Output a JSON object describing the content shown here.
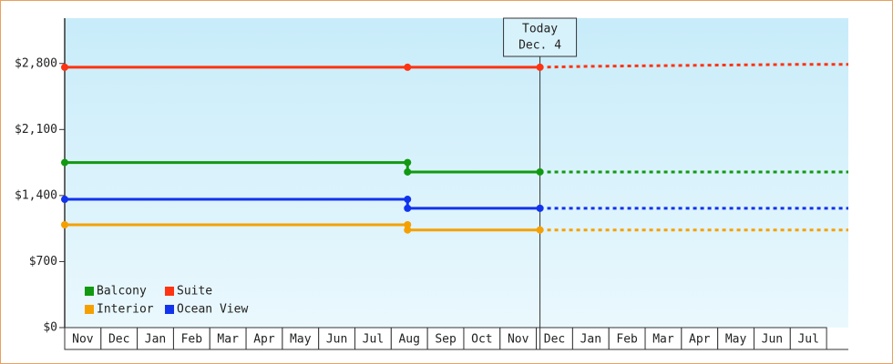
{
  "chart_data": {
    "type": "line",
    "step": true,
    "categories": [
      "Nov",
      "Dec",
      "Jan",
      "Feb",
      "Mar",
      "Apr",
      "May",
      "Jun",
      "Jul",
      "Aug",
      "Sep",
      "Oct",
      "Nov",
      "Dec",
      "Jan",
      "Feb",
      "Mar",
      "Apr",
      "May",
      "Jun",
      "Jul"
    ],
    "xlim": [
      0,
      21.6
    ],
    "ylim": [
      0,
      3280
    ],
    "yticks": [
      {
        "value": 0,
        "label": "$0"
      },
      {
        "value": 700,
        "label": "$700"
      },
      {
        "value": 1400,
        "label": "$1,400"
      },
      {
        "value": 2100,
        "label": "$2,100"
      },
      {
        "value": 2800,
        "label": "$2,800"
      }
    ],
    "legend": "bottom-left",
    "today": {
      "x": 13.1,
      "label": [
        "Today",
        "Dec. 4"
      ]
    },
    "series": [
      {
        "name": "Balcony",
        "color": "#119911",
        "x": [
          0,
          9.45,
          9.45,
          13.1
        ],
        "values": [
          1750,
          1750,
          1650,
          1650
        ],
        "forecast_x": [
          13.1,
          21.6
        ],
        "forecast_values": [
          1650,
          1650
        ]
      },
      {
        "name": "Suite",
        "color": "#ff3311",
        "x": [
          0,
          9.45,
          13.1
        ],
        "values": [
          2760,
          2760,
          2760
        ],
        "forecast_x": [
          13.1,
          14.5,
          20.1,
          21.6
        ],
        "forecast_values": [
          2760,
          2770,
          2790,
          2790
        ]
      },
      {
        "name": "Interior",
        "color": "#f5a000",
        "x": [
          0,
          9.45,
          9.45,
          13.1
        ],
        "values": [
          1090,
          1090,
          1035,
          1035
        ],
        "forecast_x": [
          13.1,
          21.6
        ],
        "forecast_values": [
          1035,
          1035
        ]
      },
      {
        "name": "Ocean View",
        "color": "#1133ee",
        "x": [
          0,
          9.45,
          9.45,
          13.1
        ],
        "values": [
          1360,
          1360,
          1265,
          1265
        ],
        "forecast_x": [
          13.1,
          21.6
        ],
        "forecast_values": [
          1265,
          1265
        ]
      }
    ]
  }
}
